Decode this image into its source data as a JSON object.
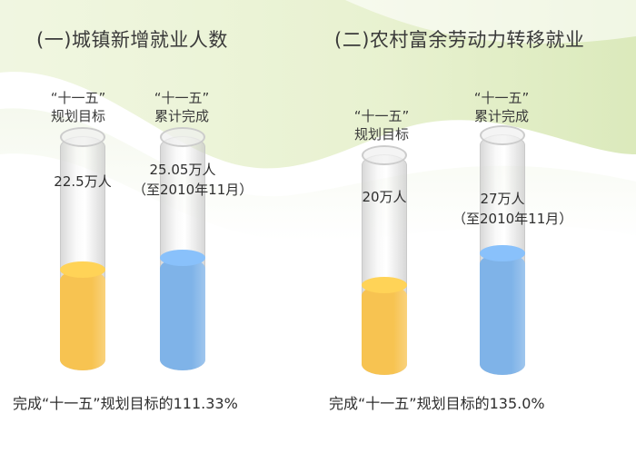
{
  "chart_data": [
    {
      "type": "bar",
      "title": "(一)城镇新增就业人数",
      "unit": "万人",
      "categories": [
        "“十一五” 规划目标",
        "“十一五” 累计完成"
      ],
      "values": [
        22.5,
        25.05
      ],
      "bars": [
        {
          "label_line1": "“十一五”",
          "label_line2": "规划目标",
          "value_text": "22.5万人",
          "note": "",
          "value": 22.5,
          "color": "#f7c351"
        },
        {
          "label_line1": "“十一五”",
          "label_line2": "累计完成",
          "value_text": "25.05万人",
          "note": "（至2010年11月）",
          "value": 25.05,
          "color": "#7fb3e8"
        }
      ],
      "footnote": "完成“十一五”规划目标的111.33%"
    },
    {
      "type": "bar",
      "title": "(二)农村富余劳动力转移就业",
      "unit": "万人",
      "categories": [
        "“十一五” 规划目标",
        "“十一五” 累计完成"
      ],
      "values": [
        20,
        27
      ],
      "bars": [
        {
          "label_line1": "“十一五”",
          "label_line2": "规划目标",
          "value_text": "20万人",
          "note": "",
          "value": 20,
          "color": "#f7c351"
        },
        {
          "label_line1": "“十一五”",
          "label_line2": "累计完成",
          "value_text": "27万人",
          "note": "（至2010年11月）",
          "value": 27,
          "color": "#7fb3e8"
        }
      ],
      "footnote": "完成“十一五”规划目标的135.0%"
    }
  ]
}
